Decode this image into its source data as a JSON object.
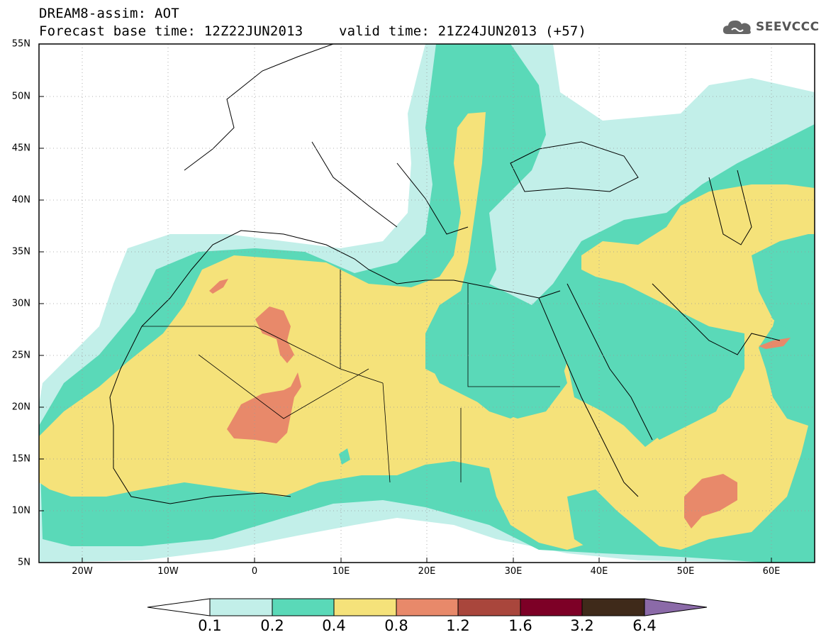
{
  "title": {
    "line1": "DREAM8-assim: AOT",
    "line2_left": "Forecast base time: 12Z22JUN2013",
    "line2_right": "valid time: 21Z24JUN2013 (+57)"
  },
  "logo": {
    "text": "SEEVCCC",
    "icon": "cloud-icon"
  },
  "map": {
    "latitude_labels": [
      "55N",
      "50N",
      "45N",
      "40N",
      "35N",
      "30N",
      "25N",
      "20N",
      "15N",
      "10N",
      "5N"
    ],
    "longitude_labels": [
      "20W",
      "10W",
      "0",
      "10E",
      "20E",
      "30E",
      "40E",
      "50E",
      "60E"
    ],
    "grid": "dotted",
    "region": "North Africa, Europe and Middle East"
  },
  "colorbar": {
    "ticks": [
      "0.1",
      "0.2",
      "0.4",
      "0.8",
      "1.2",
      "1.6",
      "3.2",
      "6.4"
    ],
    "colors": [
      "#ffffff",
      "#c2efe9",
      "#5ad9b8",
      "#f5e27a",
      "#e8896a",
      "#a9463c",
      "#7d0026",
      "#3f2a1a",
      "#8b6aa8"
    ]
  },
  "palette": {
    "c01": "#c2efe9",
    "c02": "#5ad9b8",
    "c04": "#f5e27a",
    "c08": "#e8896a"
  }
}
